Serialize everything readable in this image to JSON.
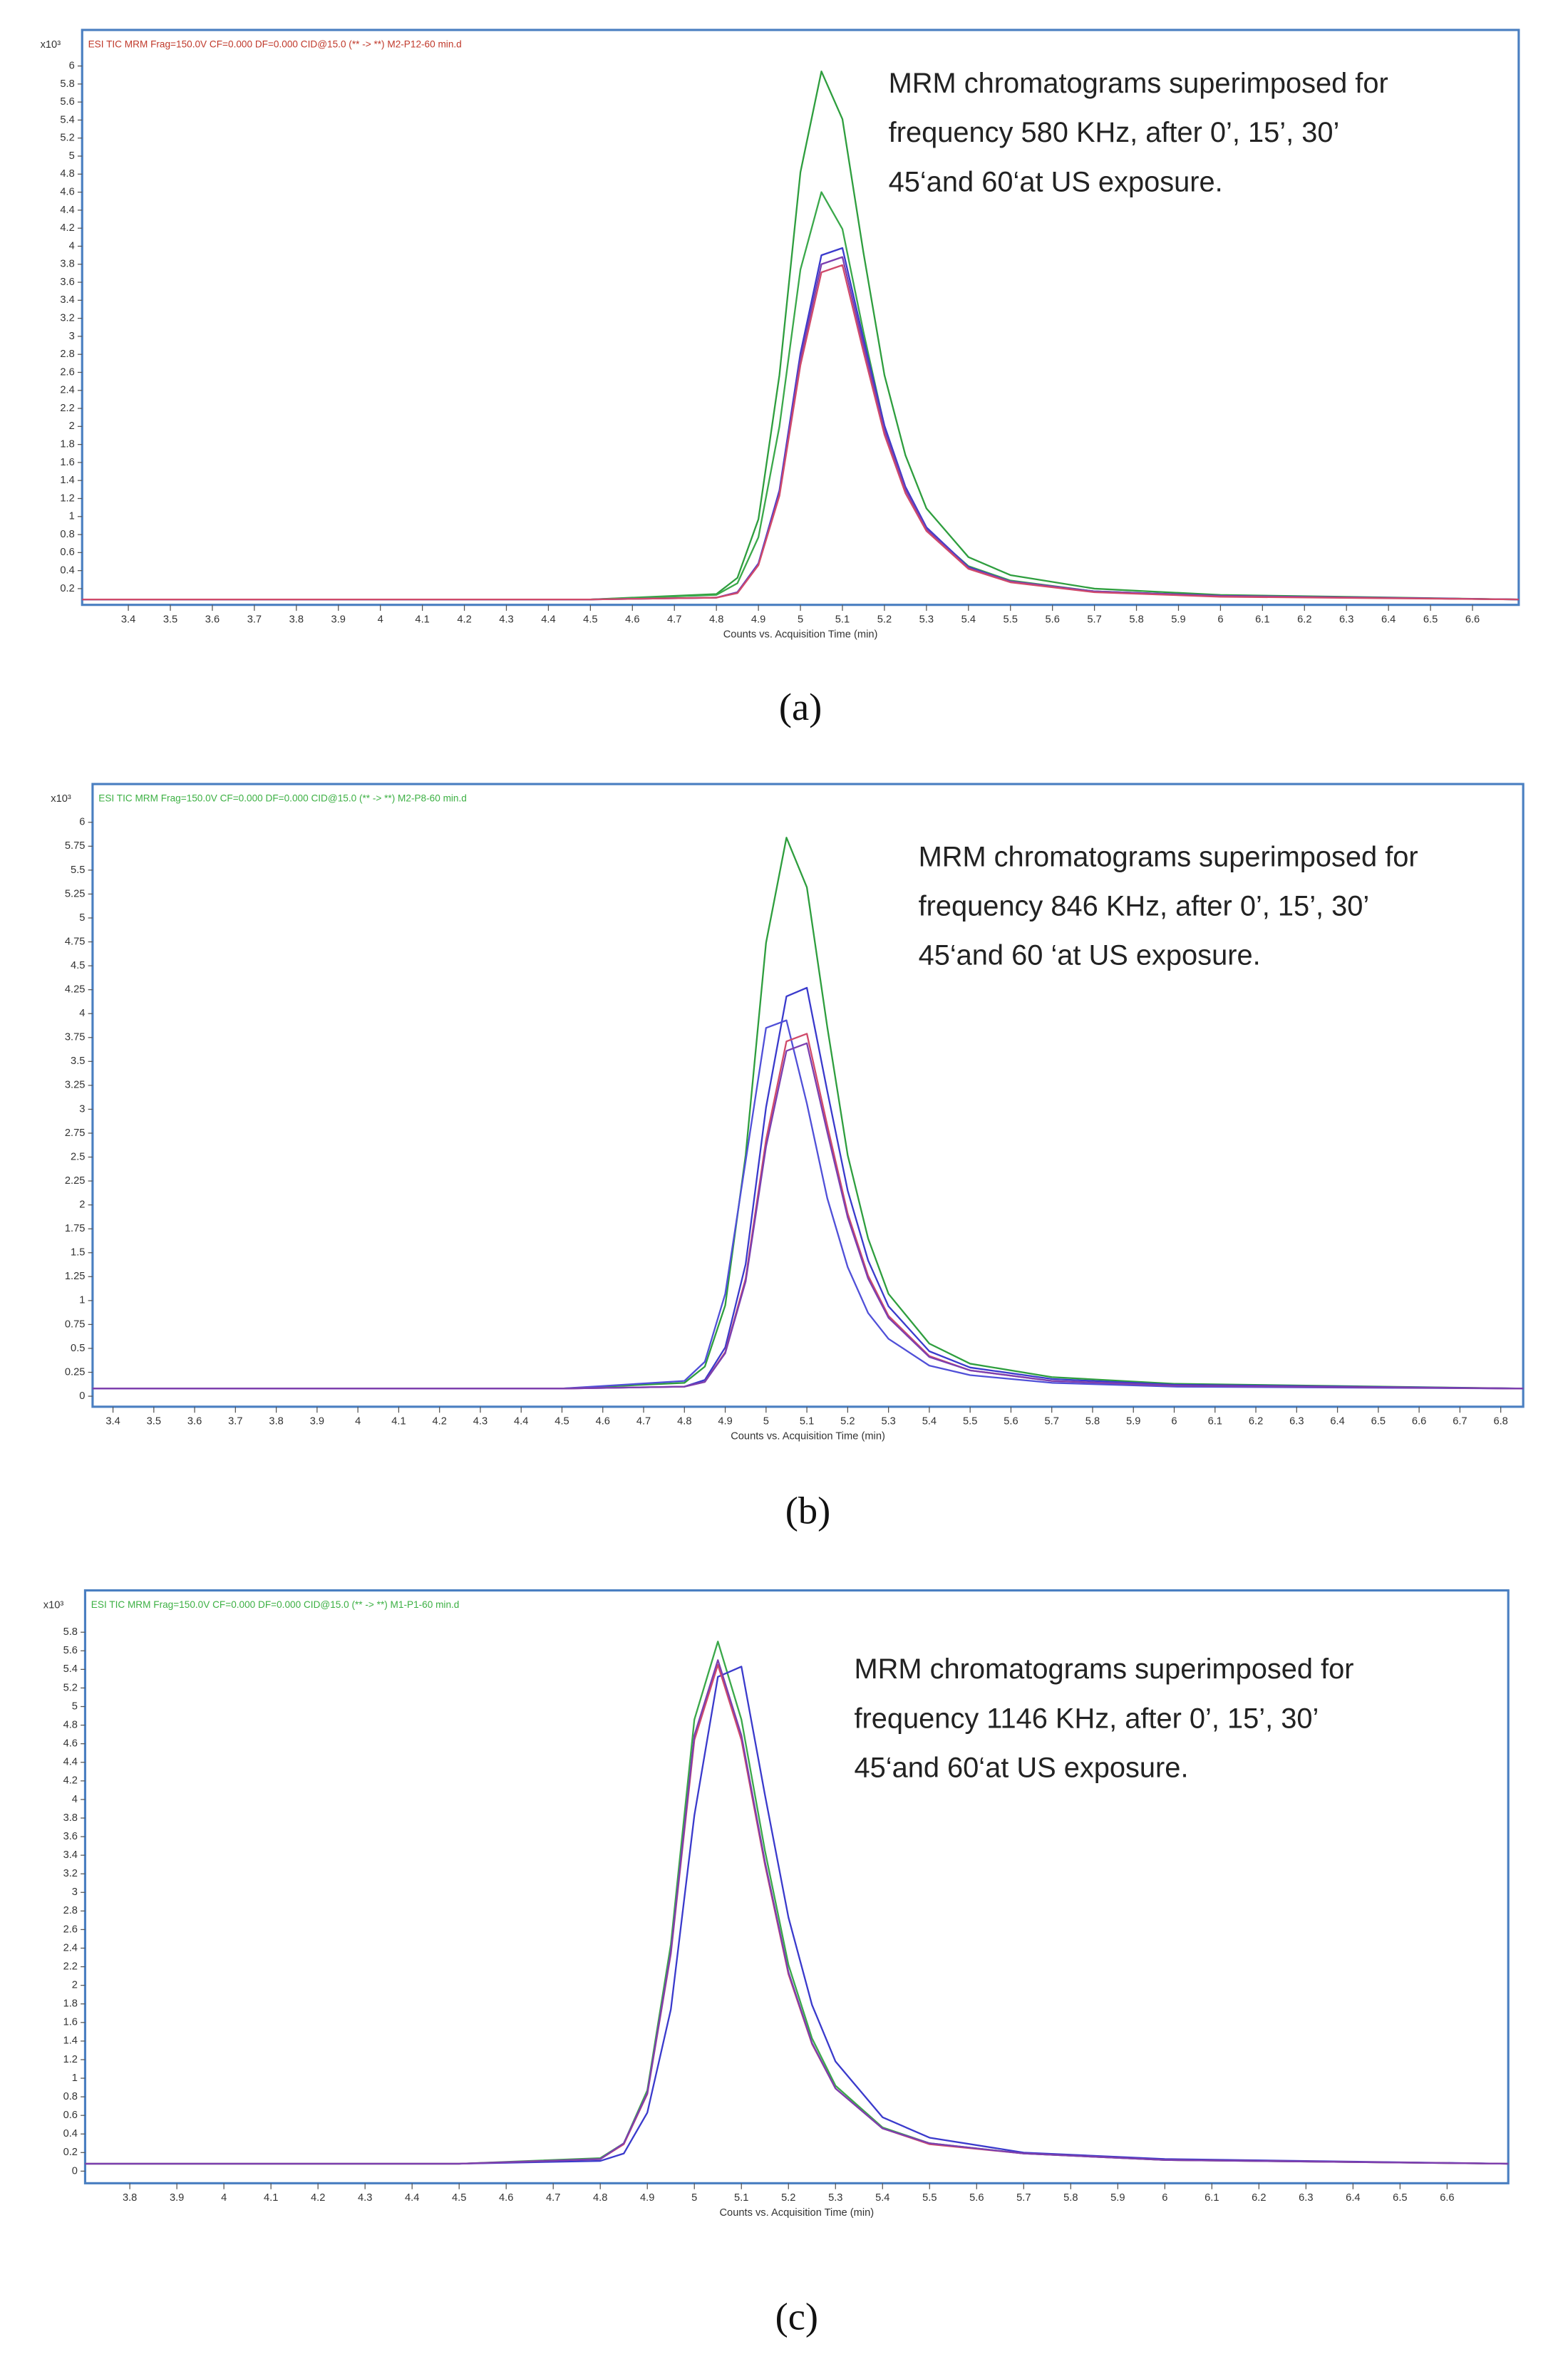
{
  "chart_data": [
    {
      "type": "line",
      "header": "ESI TIC MRM Frag=150.0V CF=0.000 DF=0.000 CID@15.0 (** -> **) M2-P12-60 min.d",
      "header_color": "#c0392b",
      "y_unit": "x10³",
      "annotation": [
        "MRM chromatograms superimposed for",
        "frequency 580 KHz, after 0’, 15’, 30’",
        "45‘and 60‘at US exposure."
      ],
      "x_label": "Counts vs. Acquisition Time (min)",
      "caption": "(a)",
      "x": [
        3.29,
        4.5,
        4.8,
        4.85,
        4.9,
        4.95,
        5.0,
        5.05,
        5.1,
        5.15,
        5.2,
        5.25,
        5.3,
        5.4,
        5.5,
        5.7,
        6.0,
        6.71
      ],
      "series": [
        {
          "color": "#2e9e3e",
          "values": [
            0.08,
            0.08,
            0.14,
            0.32,
            0.97,
            2.57,
            4.82,
            5.94,
            5.41,
            3.93,
            2.57,
            1.68,
            1.09,
            0.55,
            0.35,
            0.2,
            0.13,
            0.08
          ]
        },
        {
          "color": "#3aa84a",
          "values": [
            0.08,
            0.08,
            0.13,
            0.26,
            0.77,
            2.0,
            3.74,
            4.6,
            4.19,
            3.05,
            2.0,
            1.31,
            0.86,
            0.45,
            0.29,
            0.17,
            0.12,
            0.08
          ]
        },
        {
          "color": "#3a3acc",
          "values": [
            0.08,
            0.08,
            0.1,
            0.16,
            0.48,
            1.29,
            2.81,
            3.9,
            3.98,
            2.97,
            2.01,
            1.33,
            0.88,
            0.44,
            0.28,
            0.17,
            0.12,
            0.08
          ]
        },
        {
          "color": "#7b3fb0",
          "values": [
            0.08,
            0.08,
            0.1,
            0.16,
            0.47,
            1.26,
            2.75,
            3.8,
            3.88,
            2.9,
            1.96,
            1.3,
            0.86,
            0.43,
            0.28,
            0.17,
            0.12,
            0.08
          ]
        },
        {
          "color": "#d04a6a",
          "values": [
            0.08,
            0.08,
            0.1,
            0.15,
            0.46,
            1.23,
            2.68,
            3.71,
            3.79,
            2.83,
            1.91,
            1.26,
            0.84,
            0.42,
            0.27,
            0.16,
            0.11,
            0.08
          ]
        }
      ],
      "xlim": [
        3.29,
        6.71
      ],
      "ylim": [
        0.02,
        6.4
      ],
      "xticks": [
        3.4,
        3.5,
        3.6,
        3.7,
        3.8,
        3.9,
        4,
        4.1,
        4.2,
        4.3,
        4.4,
        4.5,
        4.6,
        4.7,
        4.8,
        4.9,
        5,
        5.1,
        5.2,
        5.3,
        5.4,
        5.5,
        5.6,
        5.7,
        5.8,
        5.9,
        6,
        6.1,
        6.2,
        6.3,
        6.4,
        6.5,
        6.6
      ],
      "yticks": [
        0.2,
        0.4,
        0.6,
        0.8,
        1,
        1.2,
        1.4,
        1.6,
        1.8,
        2,
        2.2,
        2.4,
        2.6,
        2.8,
        3,
        3.2,
        3.4,
        3.6,
        3.8,
        4,
        4.2,
        4.4,
        4.6,
        4.8,
        5,
        5.2,
        5.4,
        5.6,
        5.8,
        6
      ]
    },
    {
      "type": "line",
      "header": "ESI TIC MRM Frag=150.0V CF=0.000 DF=0.000 CID@15.0 (** -> **) M2-P8-60 min.d",
      "header_color": "#3cb043",
      "y_unit": "x10³",
      "annotation": [
        "MRM chromatograms superimposed for",
        "frequency 846 KHz, after 0’, 15’, 30’",
        "45‘and 60 ‘at US exposure."
      ],
      "x_label": "Counts vs. Acquisition Time (min)",
      "caption": "(b)",
      "x": [
        3.35,
        4.5,
        4.8,
        4.85,
        4.9,
        4.95,
        5.0,
        5.05,
        5.1,
        5.15,
        5.2,
        5.25,
        5.3,
        5.4,
        5.5,
        5.7,
        6.0,
        6.855
      ],
      "series": [
        {
          "color": "#2e9e3e",
          "values": [
            0.08,
            0.08,
            0.14,
            0.31,
            0.95,
            2.52,
            4.74,
            5.84,
            5.32,
            3.86,
            2.52,
            1.65,
            1.07,
            0.55,
            0.34,
            0.2,
            0.13,
            0.08
          ]
        },
        {
          "color": "#3a3acc",
          "values": [
            0.08,
            0.08,
            0.1,
            0.17,
            0.51,
            1.38,
            3.02,
            4.18,
            4.27,
            3.19,
            2.15,
            1.42,
            0.94,
            0.47,
            0.3,
            0.18,
            0.12,
            0.08
          ]
        },
        {
          "color": "#5050d8",
          "values": [
            0.08,
            0.08,
            0.16,
            0.36,
            1.07,
            2.46,
            3.85,
            3.93,
            3.06,
            2.07,
            1.35,
            0.87,
            0.6,
            0.32,
            0.22,
            0.14,
            0.1,
            0.08
          ]
        },
        {
          "color": "#d04a6a",
          "values": [
            0.08,
            0.08,
            0.1,
            0.15,
            0.46,
            1.23,
            2.68,
            3.71,
            3.79,
            2.83,
            1.91,
            1.26,
            0.84,
            0.42,
            0.27,
            0.16,
            0.11,
            0.08
          ]
        },
        {
          "color": "#7b3fb0",
          "values": [
            0.08,
            0.08,
            0.1,
            0.15,
            0.45,
            1.2,
            2.61,
            3.61,
            3.69,
            2.76,
            1.87,
            1.23,
            0.82,
            0.41,
            0.27,
            0.16,
            0.11,
            0.08
          ]
        }
      ],
      "xlim": [
        3.35,
        6.855
      ],
      "ylim": [
        -0.11,
        6.4
      ],
      "xticks": [
        3.4,
        3.5,
        3.6,
        3.7,
        3.8,
        3.9,
        4,
        4.1,
        4.2,
        4.3,
        4.4,
        4.5,
        4.6,
        4.7,
        4.8,
        4.9,
        5,
        5.1,
        5.2,
        5.3,
        5.4,
        5.5,
        5.6,
        5.7,
        5.8,
        5.9,
        6,
        6.1,
        6.2,
        6.3,
        6.4,
        6.5,
        6.6,
        6.7,
        6.8
      ],
      "yticks": [
        0,
        0.25,
        0.5,
        0.75,
        1,
        1.25,
        1.5,
        1.75,
        2,
        2.25,
        2.5,
        2.75,
        3,
        3.25,
        3.5,
        3.75,
        4,
        4.25,
        4.5,
        4.75,
        5,
        5.25,
        5.5,
        5.75,
        6
      ]
    },
    {
      "type": "line",
      "header": "ESI TIC MRM Frag=150.0V CF=0.000 DF=0.000 CID@15.0 (** -> **) M1-P1-60 min.d",
      "header_color": "#3cb043",
      "y_unit": "x10³",
      "annotation": [
        "MRM chromatograms superimposed for",
        "frequency 1146 KHz, after 0’, 15’, 30’",
        "45‘and 60‘at US exposure."
      ],
      "x_label": "Counts vs. Acquisition Time (min)",
      "caption": "(c)",
      "x": [
        3.705,
        4.5,
        4.8,
        4.85,
        4.9,
        4.95,
        5.0,
        5.05,
        5.1,
        5.15,
        5.2,
        5.25,
        5.3,
        5.4,
        5.5,
        5.7,
        6.0,
        6.73
      ],
      "series": [
        {
          "color": "#3aa84a",
          "values": [
            0.08,
            0.08,
            0.14,
            0.3,
            0.87,
            2.44,
            4.86,
            5.7,
            4.86,
            3.45,
            2.22,
            1.43,
            0.92,
            0.47,
            0.3,
            0.19,
            0.12,
            0.08
          ]
        },
        {
          "color": "#3a3acc",
          "values": [
            0.08,
            0.08,
            0.11,
            0.19,
            0.63,
            1.74,
            3.83,
            5.32,
            5.43,
            4.05,
            2.73,
            1.79,
            1.18,
            0.58,
            0.36,
            0.2,
            0.13,
            0.08
          ]
        },
        {
          "color": "#d04a6a",
          "values": [
            0.08,
            0.08,
            0.13,
            0.29,
            0.83,
            2.34,
            4.64,
            5.45,
            4.64,
            3.3,
            2.12,
            1.37,
            0.89,
            0.46,
            0.29,
            0.19,
            0.12,
            0.08
          ]
        },
        {
          "color": "#7b3fb0",
          "values": [
            0.08,
            0.08,
            0.13,
            0.3,
            0.84,
            2.36,
            4.69,
            5.5,
            4.69,
            3.33,
            2.14,
            1.38,
            0.89,
            0.46,
            0.3,
            0.19,
            0.12,
            0.08
          ]
        }
      ],
      "xlim": [
        3.705,
        6.73
      ],
      "ylim": [
        -0.13,
        6.25
      ],
      "xticks": [
        3.8,
        3.9,
        4,
        4.1,
        4.2,
        4.3,
        4.4,
        4.5,
        4.6,
        4.7,
        4.8,
        4.9,
        5,
        5.1,
        5.2,
        5.3,
        5.4,
        5.5,
        5.6,
        5.7,
        5.8,
        5.9,
        6,
        6.1,
        6.2,
        6.3,
        6.4,
        6.5,
        6.6
      ],
      "yticks": [
        0,
        0.2,
        0.4,
        0.6,
        0.8,
        1,
        1.2,
        1.4,
        1.6,
        1.8,
        2,
        2.2,
        2.4,
        2.6,
        2.8,
        3,
        3.2,
        3.4,
        3.6,
        3.8,
        4,
        4.2,
        4.4,
        4.6,
        4.8,
        5,
        5.2,
        5.4,
        5.6,
        5.8
      ]
    }
  ]
}
